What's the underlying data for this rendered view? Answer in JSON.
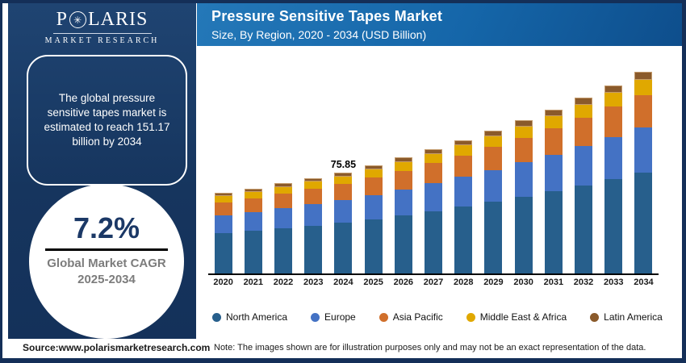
{
  "brand": {
    "logo_p1": "P",
    "logo_star_glyph": "✳",
    "logo_p2": "LARIS",
    "logo_line2": "MARKET RESEARCH"
  },
  "header": {
    "title": "Pressure Sensitive Tapes Market",
    "subtitle": "Size, By Region, 2020 - 2034 (USD Billion)"
  },
  "sidebar": {
    "callout": "The global pressure sensitive tapes market is estimated to reach 151.17 billion by 2034",
    "cagr_value": "7.2%",
    "cagr_label_line1": "Global Market CAGR",
    "cagr_label_line2": "2025-2034"
  },
  "footer": {
    "source": "Source:www.polarismarketresearch.com",
    "note": "Note: The images shown are for illustration purposes only and may not be an exact representation of the data."
  },
  "colors": {
    "frame_navy": "#142F58",
    "sidebar_navy": "#16355E",
    "header_blue": "#1566A9",
    "cagr_text_navy": "#1B3866",
    "cagr_label_gray": "#7C7C7C"
  },
  "chart_data": {
    "type": "bar",
    "stacked": true,
    "title": "Pressure Sensitive Tapes Market Size, By Region, 2020 - 2034 (USD Billion)",
    "xlabel": "",
    "ylabel": "USD Billion",
    "ylim": [
      0,
      160
    ],
    "grid": false,
    "legend_position": "bottom",
    "categories": [
      "2020",
      "2021",
      "2022",
      "2023",
      "2024",
      "2025",
      "2026",
      "2027",
      "2028",
      "2029",
      "2030",
      "2031",
      "2032",
      "2033",
      "2034"
    ],
    "series": [
      {
        "name": "North America",
        "color": "#275F8C",
        "values": [
          30.1,
          31.89,
          33.79,
          35.8,
          37.92,
          40.64,
          43.54,
          46.66,
          49.99,
          53.57,
          57.4,
          61.5,
          65.9,
          70.61,
          75.58
        ]
      },
      {
        "name": "Europe",
        "color": "#4472C4",
        "values": [
          13.55,
          14.35,
          15.2,
          16.11,
          17.07,
          18.29,
          19.59,
          21.0,
          22.5,
          24.1,
          25.83,
          27.67,
          29.65,
          31.77,
          34.01
        ]
      },
      {
        "name": "Asia Pacific",
        "color": "#D06F2B",
        "values": [
          9.63,
          10.2,
          10.81,
          11.45,
          12.14,
          13.0,
          13.93,
          14.93,
          16.0,
          17.14,
          18.37,
          19.68,
          21.09,
          22.59,
          24.19
        ]
      },
      {
        "name": "Middle East & Africa",
        "color": "#E0A800",
        "values": [
          4.52,
          4.78,
          5.07,
          5.37,
          5.69,
          6.1,
          6.53,
          7.0,
          7.5,
          8.03,
          8.61,
          9.22,
          9.88,
          10.59,
          11.34
        ]
      },
      {
        "name": "Latin America",
        "color": "#8A5A2B",
        "border_color": "#C49B6C",
        "values": [
          2.41,
          2.55,
          2.7,
          2.86,
          3.03,
          3.25,
          3.48,
          3.73,
          4.0,
          4.29,
          4.59,
          4.92,
          5.27,
          5.65,
          6.05
        ]
      }
    ],
    "totals": [
      60.21,
      63.77,
      67.57,
      71.59,
      75.85,
      81.28,
      87.07,
      93.32,
      99.99,
      107.13,
      114.8,
      122.99,
      131.79,
      141.21,
      151.17
    ],
    "annotations": [
      {
        "category": "2024",
        "text": "75.85"
      }
    ]
  }
}
